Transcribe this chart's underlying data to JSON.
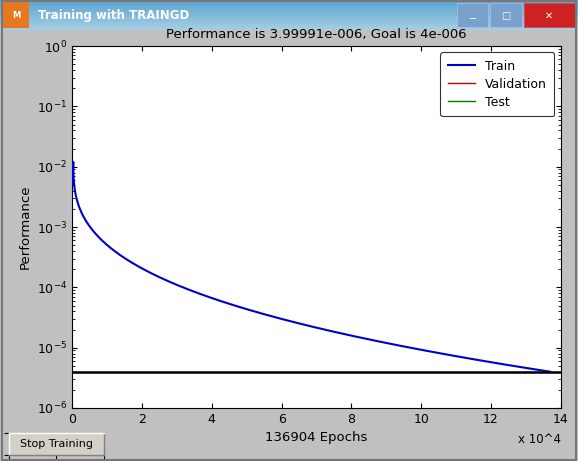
{
  "title": "Performance is 3.99991e-006, Goal is 4e-006",
  "xlabel": "136904 Epochs",
  "ylabel": "Performance",
  "xlim": [
    0,
    140000
  ],
  "ylim_log": [
    -6,
    0
  ],
  "x_scale_note": "x 10^4",
  "goal_value": 4e-06,
  "train_peak_x": 300,
  "train_peak_y": 0.012,
  "train_start_y": 0.005,
  "train_end_x": 136904,
  "train_end_y": 3.99991e-06,
  "bg_color": "#c0c0c0",
  "plot_bg_color": "#ffffff",
  "train_color": "#0000cc",
  "validation_color": "#cc0000",
  "test_color": "#007700",
  "goal_color": "#000000",
  "titlebar_gradient_top": "#6a9fd8",
  "titlebar_gradient_bot": "#3a6ab0",
  "window_title": "Training with TRAINGD",
  "legend_entries": [
    "Train",
    "Validation",
    "Test"
  ],
  "xticks": [
    0,
    20000,
    40000,
    60000,
    80000,
    100000,
    120000,
    140000
  ],
  "xtick_labels": [
    "0",
    "2",
    "4",
    "6",
    "8",
    "10",
    "12",
    "14"
  ],
  "yticks_log": [
    -6,
    -5,
    -4,
    -3,
    -2,
    -1,
    0
  ]
}
